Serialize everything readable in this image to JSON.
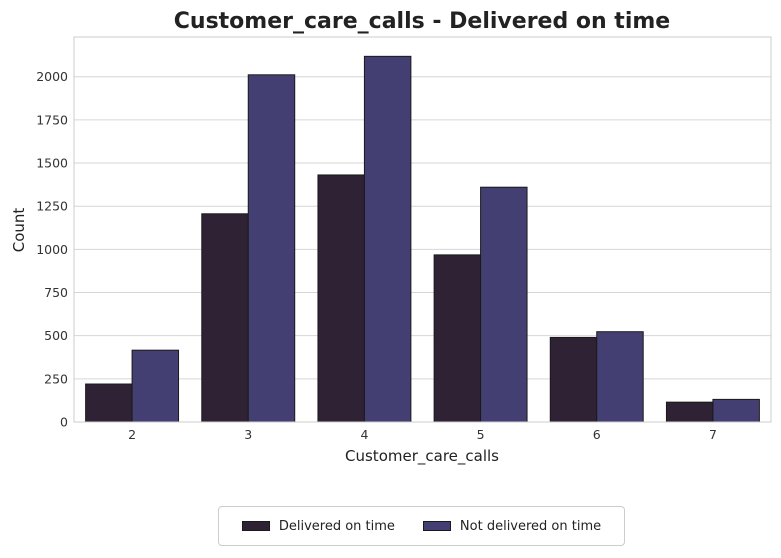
{
  "chart_data": {
    "type": "bar",
    "title": "Customer_care_calls - Delivered on time",
    "xlabel": "Customer_care_calls",
    "ylabel": "Count",
    "categories": [
      "2",
      "3",
      "4",
      "5",
      "6",
      "7"
    ],
    "ylim": [
      0,
      2230
    ],
    "yticks": [
      0,
      250,
      500,
      750,
      1000,
      1250,
      1500,
      1750,
      2000
    ],
    "grid": true,
    "legend_position": "bottom-center",
    "series": [
      {
        "name": "Delivered on time",
        "color": "#2e2234",
        "values": [
          220,
          1206,
          1431,
          968,
          490,
          115
        ]
      },
      {
        "name": "Not delivered on time",
        "color": "#443f72",
        "values": [
          416,
          2011,
          2118,
          1360,
          523,
          131
        ]
      }
    ]
  }
}
